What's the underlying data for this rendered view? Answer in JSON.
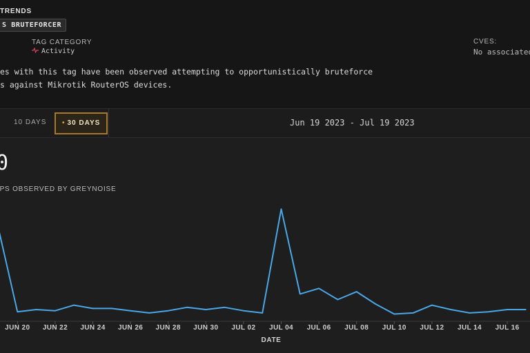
{
  "header": {
    "trends_label": "TRENDS",
    "tag_chip": "S BRUTEFORCER",
    "tag_category_label": "TAG CATEGORY",
    "tag_category_value": "Activity",
    "tag_category_icon": "activity-pulse-icon",
    "cves_label": "CVES:",
    "cves_value": "No associated",
    "description_lines": [
      "es with this tag have been observed attempting to opportunistically bruteforce",
      "s against Mikrotik RouterOS devices."
    ]
  },
  "range_bar": {
    "btn_10": "10 DAYS",
    "btn_30": "30 DAYS",
    "btn_30_dot": "•",
    "date_range": "Jun 19 2023 - Jul 19 2023"
  },
  "chart": {
    "big_count": "0",
    "subtitle": "IPS OBSERVED BY GREYNOISE",
    "line_color": "#4aa8e8"
  },
  "chart_data": {
    "type": "line",
    "title": "",
    "xlabel": "DATE",
    "ylabel": "",
    "x": [
      "Jun 19",
      "Jun 20",
      "Jun 21",
      "Jun 22",
      "Jun 23",
      "Jun 24",
      "Jun 25",
      "Jun 26",
      "Jun 27",
      "Jun 28",
      "Jun 29",
      "Jun 30",
      "Jul 01",
      "Jul 02",
      "Jul 03",
      "Jul 04",
      "Jul 05",
      "Jul 06",
      "Jul 07",
      "Jul 08",
      "Jul 09",
      "Jul 10",
      "Jul 11",
      "Jul 12",
      "Jul 13",
      "Jul 14",
      "Jul 15",
      "Jul 16",
      "Jul 17"
    ],
    "values": [
      80,
      6,
      8,
      7,
      12,
      9,
      9,
      7,
      5,
      7,
      10,
      8,
      10,
      7,
      5,
      98,
      22,
      27,
      17,
      24,
      13,
      4,
      5,
      12,
      8,
      5,
      6,
      8,
      8
    ],
    "x_tick_labels": [
      "JUN 20",
      "JUN 22",
      "JUN 24",
      "JUN 26",
      "JUN 28",
      "JUN 30",
      "JUL 02",
      "JUL 04",
      "JUL 06",
      "JUL 08",
      "JUL 10",
      "JUL 12",
      "JUL 14",
      "JUL 16"
    ],
    "x_tick_indices": [
      1,
      3,
      5,
      7,
      9,
      11,
      13,
      15,
      17,
      19,
      21,
      23,
      25,
      27
    ],
    "ylim": [
      0,
      100
    ],
    "grid": false,
    "legend": "none"
  }
}
